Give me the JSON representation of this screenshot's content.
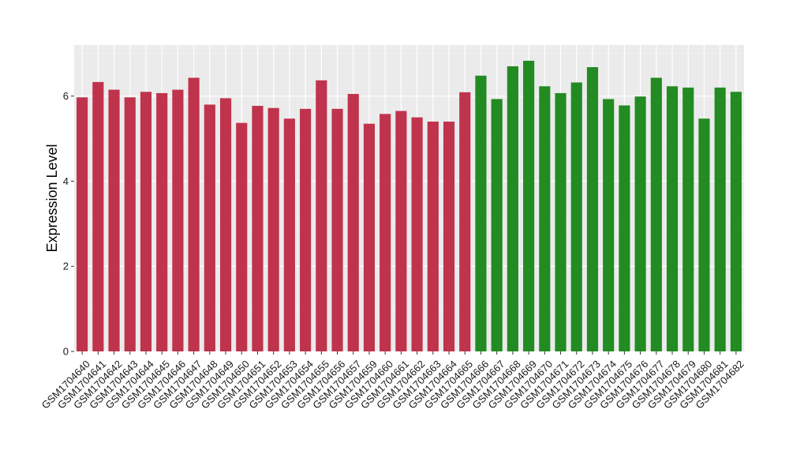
{
  "chart_data": {
    "type": "bar",
    "title": "",
    "xlabel": "",
    "ylabel": "Expression Level",
    "ylim": [
      0,
      7.2
    ],
    "yticks": [
      0,
      2,
      4,
      6
    ],
    "grid": true,
    "legend": "none",
    "categories": [
      "GSM1704640",
      "GSM1704641",
      "GSM1704642",
      "GSM1704643",
      "GSM1704644",
      "GSM1704645",
      "GSM1704646",
      "GSM1704647",
      "GSM1704648",
      "GSM1704649",
      "GSM1704650",
      "GSM1704651",
      "GSM1704652",
      "GSM1704653",
      "GSM1704654",
      "GSM1704655",
      "GSM1704656",
      "GSM1704657",
      "GSM1704659",
      "GSM1704660",
      "GSM1704661",
      "GSM1704662",
      "GSM1704663",
      "GSM1704664",
      "GSM1704665",
      "GSM1704666",
      "GSM1704667",
      "GSM1704668",
      "GSM1704669",
      "GSM1704670",
      "GSM1704671",
      "GSM1704672",
      "GSM1704673",
      "GSM1704674",
      "GSM1704675",
      "GSM1704676",
      "GSM1704677",
      "GSM1704678",
      "GSM1704679",
      "GSM1704680",
      "GSM1704681",
      "GSM1704682"
    ],
    "values": [
      5.97,
      6.33,
      6.15,
      5.97,
      6.1,
      6.07,
      6.15,
      6.43,
      5.8,
      5.95,
      5.37,
      5.77,
      5.72,
      5.47,
      5.7,
      6.37,
      5.7,
      6.05,
      5.35,
      5.58,
      5.65,
      5.5,
      5.4,
      5.4,
      6.09,
      6.48,
      5.93,
      6.7,
      6.83,
      6.23,
      6.07,
      6.32,
      6.68,
      5.93,
      5.78,
      5.99,
      6.43,
      6.23,
      6.2,
      5.47,
      6.2,
      6.1
    ],
    "group_sizes": [
      25,
      17
    ],
    "colors": {
      "group1": "#c0334d",
      "group2": "#228b22",
      "panel": "#ebebeb",
      "grid_major": "#ffffff",
      "grid_minor": "#f5f5f5"
    }
  }
}
